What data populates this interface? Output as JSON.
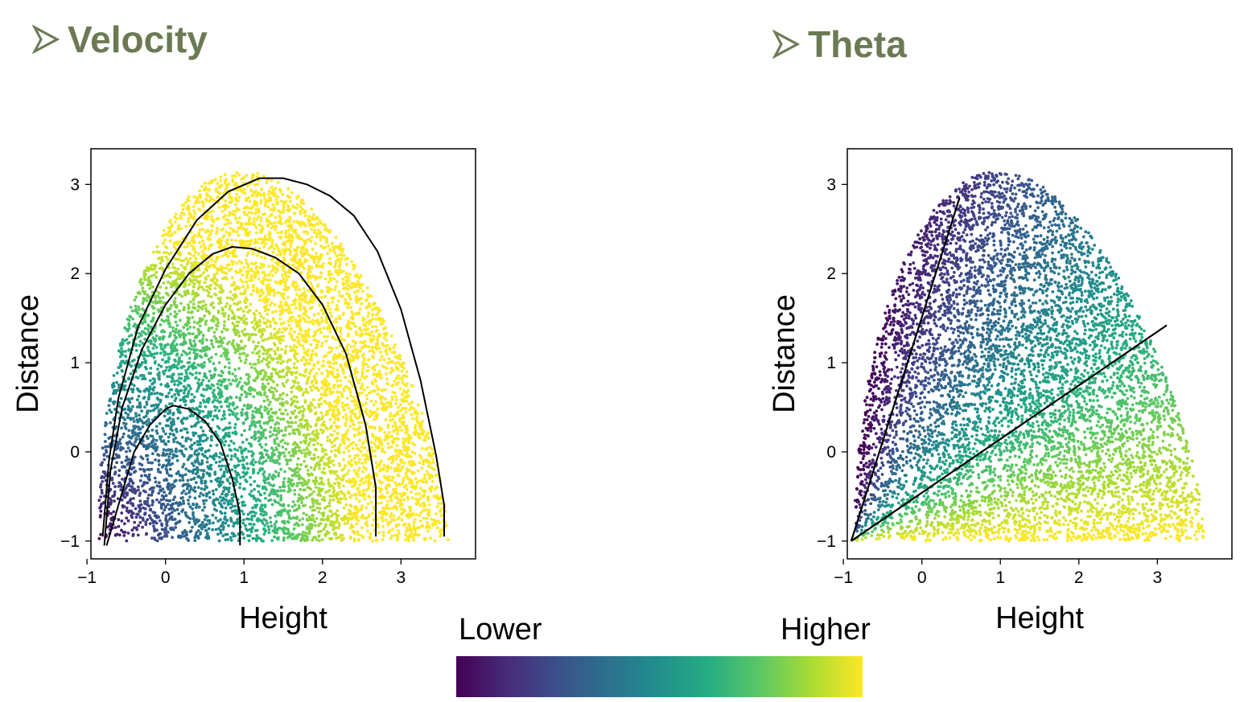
{
  "headings": {
    "left": "Velocity",
    "right": "Theta"
  },
  "colorbar": {
    "low_label": "Lower",
    "high_label": "Higher",
    "colors": [
      "#440154",
      "#472c7a",
      "#3b518b",
      "#2c718e",
      "#21908d",
      "#27ad81",
      "#5cc863",
      "#aadc32",
      "#fde725"
    ]
  },
  "heading_color": "#6b7a52",
  "chart_data": [
    {
      "type": "scatter",
      "title": "",
      "xlabel": "Height",
      "ylabel": "Distance",
      "xlim": [
        -0.95,
        3.95
      ],
      "ylim": [
        -1.2,
        3.4
      ],
      "xticks": [
        -1,
        0,
        1,
        2,
        3
      ],
      "yticks": [
        -1,
        0,
        1,
        2,
        3
      ],
      "grid": false,
      "color_encoding": "velocity",
      "point_cloud": {
        "x_range": [
          -0.85,
          3.6
        ],
        "y_range": [
          -1.0,
          3.15
        ]
      },
      "curves": [
        {
          "x": [
            -0.75,
            -0.6,
            -0.4,
            -0.2,
            0.0,
            0.1,
            0.3,
            0.5,
            0.7,
            0.85,
            0.95,
            0.95
          ],
          "y": [
            -1.05,
            -0.6,
            0.0,
            0.3,
            0.48,
            0.52,
            0.48,
            0.35,
            0.1,
            -0.3,
            -0.7,
            -1.05
          ]
        },
        {
          "x": [
            -0.78,
            -0.7,
            -0.55,
            -0.3,
            0.0,
            0.3,
            0.6,
            0.85,
            1.1,
            1.4,
            1.7,
            2.0,
            2.3,
            2.55,
            2.68,
            2.68
          ],
          "y": [
            -1.05,
            -0.2,
            0.5,
            1.15,
            1.65,
            2.0,
            2.22,
            2.3,
            2.28,
            2.18,
            2.0,
            1.65,
            1.1,
            0.3,
            -0.4,
            -0.95
          ]
        },
        {
          "x": [
            -0.8,
            -0.72,
            -0.6,
            -0.35,
            0.0,
            0.4,
            0.8,
            1.2,
            1.5,
            1.8,
            2.1,
            2.4,
            2.7,
            3.0,
            3.25,
            3.45,
            3.55,
            3.55
          ],
          "y": [
            -0.95,
            -0.1,
            0.6,
            1.4,
            2.05,
            2.6,
            2.92,
            3.07,
            3.07,
            3.0,
            2.87,
            2.65,
            2.25,
            1.6,
            0.8,
            -0.05,
            -0.6,
            -0.95
          ]
        }
      ]
    },
    {
      "type": "scatter",
      "title": "",
      "xlabel": "Height",
      "ylabel": "Distance",
      "xlim": [
        -0.95,
        3.95
      ],
      "ylim": [
        -1.2,
        3.4
      ],
      "xticks": [
        -1,
        0,
        1,
        2,
        3
      ],
      "yticks": [
        -1,
        0,
        1,
        2,
        3
      ],
      "grid": false,
      "color_encoding": "theta",
      "point_cloud": {
        "x_range": [
          -0.85,
          3.6
        ],
        "y_range": [
          -1.0,
          3.15
        ]
      },
      "lines": [
        {
          "x": [
            -0.9,
            0.48
          ],
          "y": [
            -1.0,
            2.85
          ]
        },
        {
          "x": [
            -0.9,
            3.12
          ],
          "y": [
            -1.0,
            1.42
          ]
        }
      ]
    }
  ]
}
